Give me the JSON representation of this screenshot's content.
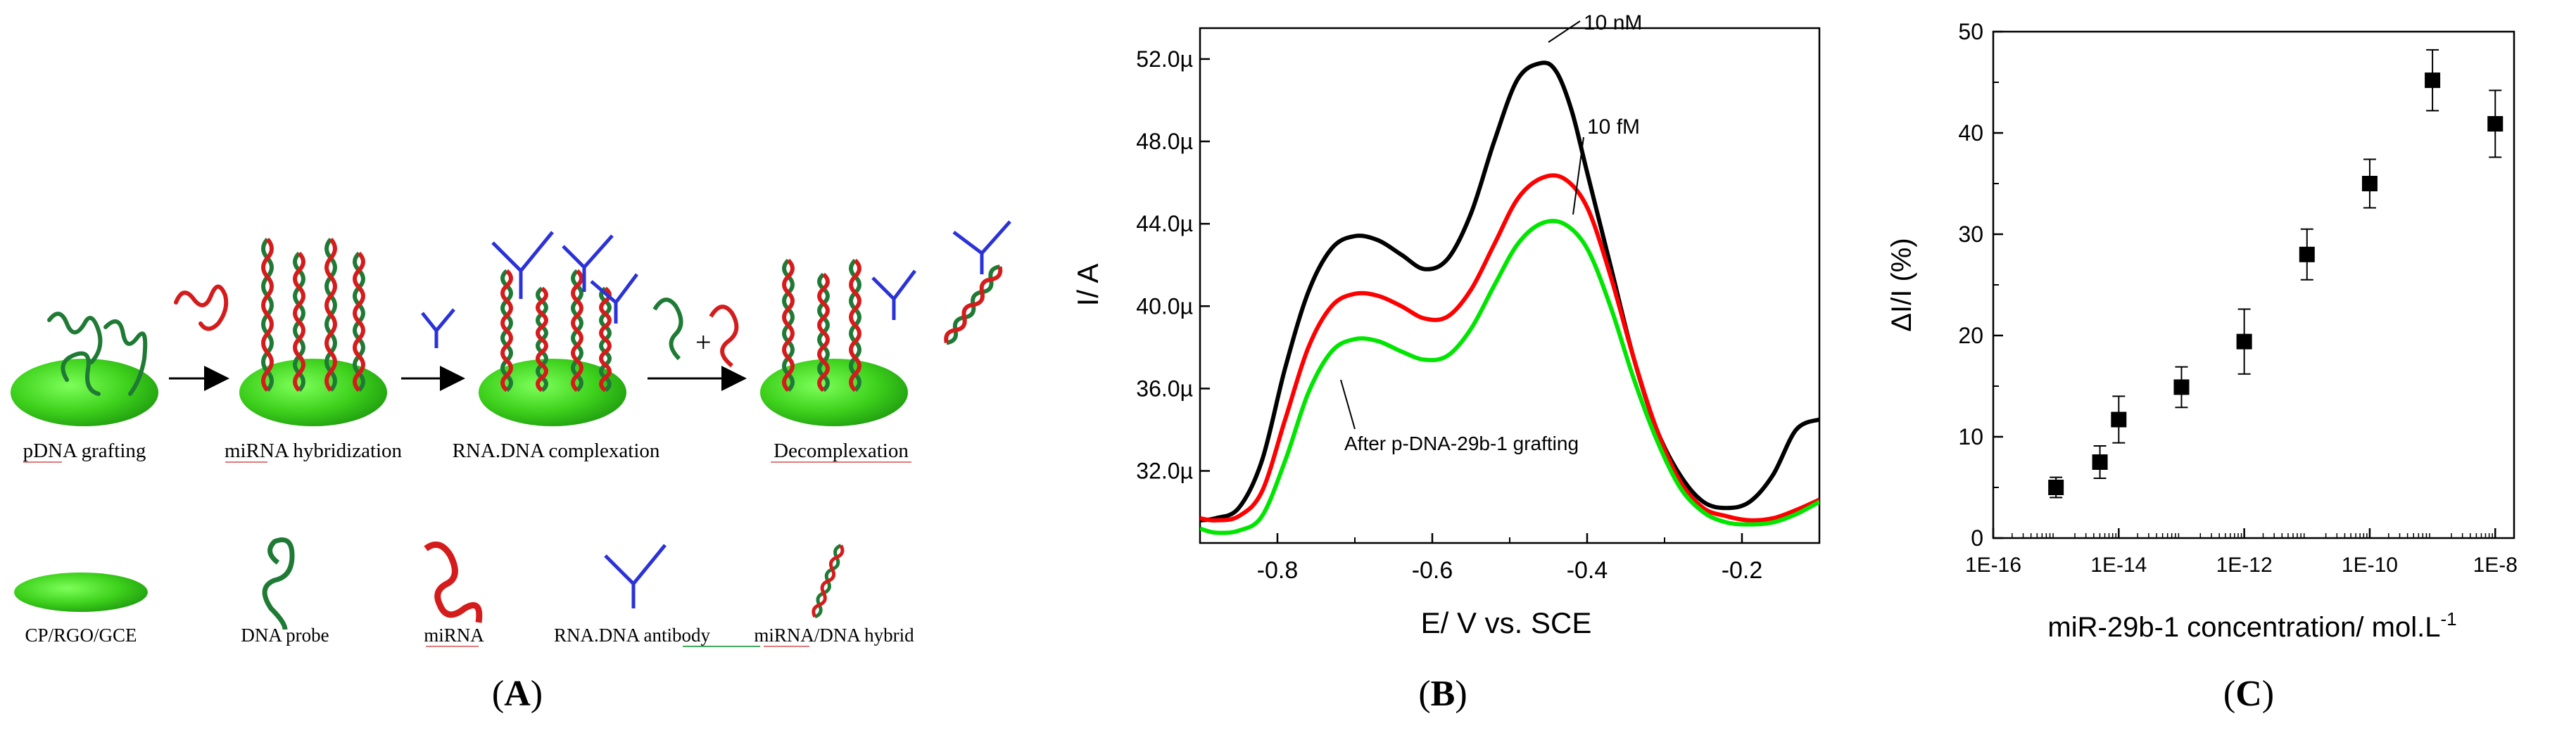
{
  "panels": {
    "a": {
      "letter": "A"
    },
    "b": {
      "letter": "B"
    },
    "c": {
      "letter": "C"
    }
  },
  "schematic": {
    "steps": [
      "pDNA grafting",
      "miRNA hybridization",
      "RNA.DNA complexation",
      "Decomplexation"
    ],
    "plus": "+",
    "legend": [
      "CP/RGO/GCE",
      "DNA probe",
      "miRNA",
      "RNA.DNA antibody",
      "miRNA/DNA hybrid"
    ]
  },
  "colors": {
    "electrode": "#3ed11c",
    "dna": "#1f7a35",
    "mirna": "#d41c1c",
    "antibody": "#2a32d8",
    "black_curve": "#000000",
    "red_curve": "#ff0000",
    "green_curve": "#00e600"
  },
  "chart_data": [
    {
      "type": "line",
      "xlabel": "E/ V vs. SCE",
      "ylabel": "I/ A",
      "xlim": [
        -0.9,
        -0.1
      ],
      "ylim": [
        28.5,
        53.5
      ],
      "x_ticks": [
        "-0.8",
        "-0.6",
        "-0.4",
        "-0.2"
      ],
      "x_tick_values": [
        -0.8,
        -0.6,
        -0.4,
        -0.2
      ],
      "y_ticks": [
        "32.0µ",
        "36.0µ",
        "40.0µ",
        "44.0µ",
        "48.0µ",
        "52.0µ"
      ],
      "y_tick_values": [
        32,
        36,
        40,
        44,
        48,
        52
      ],
      "series": [
        {
          "name": "10 nM",
          "color": "#000000",
          "x": [
            -0.9,
            -0.88,
            -0.85,
            -0.82,
            -0.79,
            -0.76,
            -0.73,
            -0.7,
            -0.67,
            -0.64,
            -0.61,
            -0.58,
            -0.55,
            -0.52,
            -0.49,
            -0.46,
            -0.44,
            -0.42,
            -0.4,
            -0.37,
            -0.34,
            -0.31,
            -0.28,
            -0.25,
            -0.22,
            -0.19,
            -0.16,
            -0.13,
            -0.1
          ],
          "y": [
            29.6,
            29.7,
            30.2,
            32.5,
            37.0,
            40.7,
            42.8,
            43.4,
            43.2,
            42.5,
            41.8,
            42.3,
            44.5,
            48.0,
            51.0,
            51.8,
            51.4,
            49.5,
            46.5,
            42.0,
            37.5,
            34.0,
            31.8,
            30.5,
            30.2,
            30.5,
            31.8,
            34.0,
            34.5
          ]
        },
        {
          "name": "10 fM",
          "color": "#ff0000",
          "x": [
            -0.9,
            -0.88,
            -0.85,
            -0.82,
            -0.79,
            -0.76,
            -0.73,
            -0.7,
            -0.67,
            -0.64,
            -0.61,
            -0.58,
            -0.55,
            -0.52,
            -0.49,
            -0.46,
            -0.43,
            -0.4,
            -0.37,
            -0.34,
            -0.31,
            -0.28,
            -0.25,
            -0.22,
            -0.19,
            -0.16,
            -0.13,
            -0.1
          ],
          "y": [
            29.7,
            29.6,
            29.8,
            31.0,
            34.5,
            38.0,
            40.0,
            40.6,
            40.5,
            40.0,
            39.4,
            39.5,
            40.8,
            43.0,
            45.2,
            46.2,
            46.2,
            44.8,
            41.5,
            37.5,
            34.0,
            31.5,
            30.2,
            29.8,
            29.6,
            29.7,
            30.1,
            30.6
          ]
        },
        {
          "name": "After p-DNA-29b-1 grafting",
          "color": "#00e600",
          "x": [
            -0.9,
            -0.88,
            -0.85,
            -0.82,
            -0.79,
            -0.76,
            -0.73,
            -0.7,
            -0.67,
            -0.64,
            -0.61,
            -0.58,
            -0.55,
            -0.52,
            -0.49,
            -0.46,
            -0.43,
            -0.4,
            -0.37,
            -0.34,
            -0.31,
            -0.28,
            -0.25,
            -0.22,
            -0.19,
            -0.16,
            -0.13,
            -0.1
          ],
          "y": [
            29.2,
            29.0,
            29.1,
            29.8,
            32.5,
            35.8,
            37.8,
            38.4,
            38.3,
            37.8,
            37.4,
            37.6,
            38.9,
            41.0,
            43.0,
            44.0,
            44.0,
            42.8,
            40.0,
            36.5,
            33.5,
            31.2,
            30.0,
            29.5,
            29.4,
            29.5,
            29.9,
            30.5
          ]
        }
      ],
      "annotations": [
        "10 nM",
        "10 fM",
        "After p-DNA-29b-1 grafting"
      ]
    },
    {
      "type": "scatter",
      "xlabel": "miR-29b-1 concentration/ mol.L",
      "xlabel_sup": "-1",
      "ylabel": "ΔI/I (%)",
      "xscale": "log",
      "xlim_exp": [
        -16,
        -7.7
      ],
      "ylim": [
        0,
        50
      ],
      "x_ticks": [
        "1E-16",
        "1E-14",
        "1E-12",
        "1E-10",
        "1E-8"
      ],
      "x_tick_exps": [
        -16,
        -14,
        -12,
        -10,
        -8
      ],
      "y_ticks": [
        "0",
        "10",
        "20",
        "30",
        "40",
        "50"
      ],
      "y_tick_values": [
        0,
        10,
        20,
        30,
        40,
        50
      ],
      "points": [
        {
          "x": "1E-15",
          "x_exp": -15.0,
          "y": 5.0,
          "err": 1.0
        },
        {
          "x": "5E-15",
          "x_exp": -14.3,
          "y": 7.5,
          "err": 1.6
        },
        {
          "x": "1E-14",
          "x_exp": -14.0,
          "y": 11.7,
          "err": 2.3
        },
        {
          "x": "1E-13",
          "x_exp": -13.0,
          "y": 14.9,
          "err": 2.0
        },
        {
          "x": "1E-12",
          "x_exp": -12.0,
          "y": 19.4,
          "err": 3.2
        },
        {
          "x": "1E-11",
          "x_exp": -11.0,
          "y": 28.0,
          "err": 2.5
        },
        {
          "x": "1E-10",
          "x_exp": -10.0,
          "y": 35.0,
          "err": 2.4
        },
        {
          "x": "1E-9",
          "x_exp": -9.0,
          "y": 45.2,
          "err": 3.0
        },
        {
          "x": "1E-8",
          "x_exp": -8.0,
          "y": 40.9,
          "err": 3.3
        }
      ]
    }
  ]
}
